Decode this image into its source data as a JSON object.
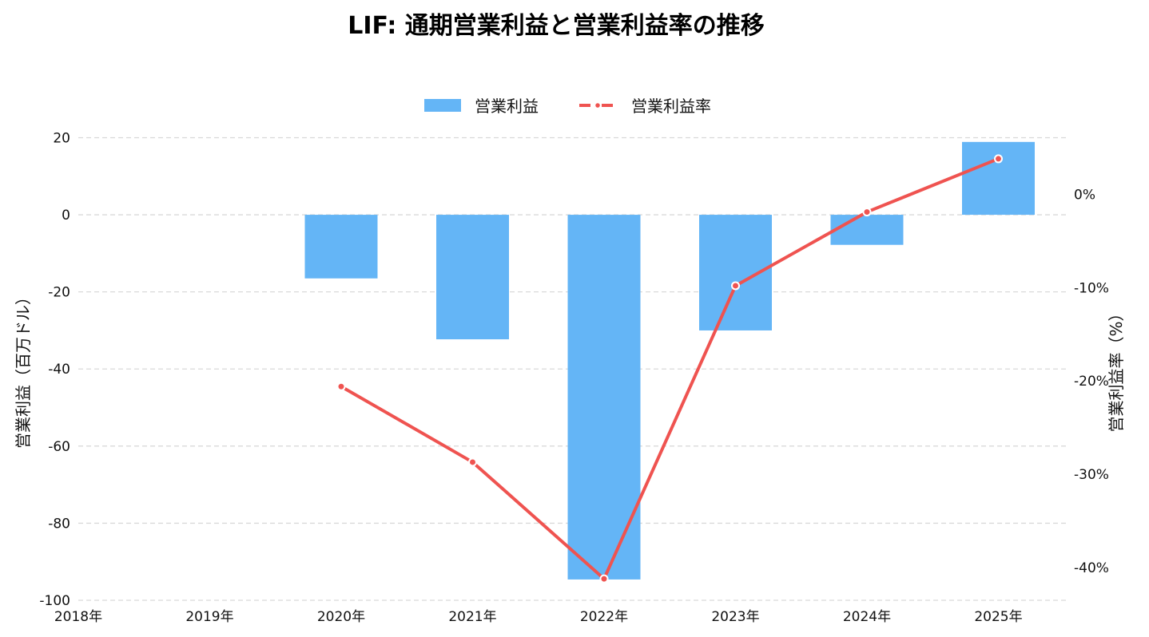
{
  "chart_data": {
    "type": "bar",
    "title": "LIF: 通期営業利益と営業利益率の推移",
    "categories": [
      "2018年",
      "2019年",
      "2020年",
      "2021年",
      "2022年",
      "2023年",
      "2024年",
      "2025年"
    ],
    "series": [
      {
        "name": "営業利益",
        "type": "bar",
        "axis": "left",
        "color": "#64B5F6",
        "values": [
          null,
          null,
          -16.5,
          -32.3,
          -94.6,
          -30.0,
          -7.8,
          18.9
        ]
      },
      {
        "name": "営業利益率",
        "type": "line",
        "axis": "right",
        "color": "#EF5350",
        "values": [
          null,
          null,
          -20.6,
          -28.7,
          -41.2,
          -9.8,
          -1.9,
          3.8
        ]
      }
    ],
    "ylabel": "営業利益（百万ドル）",
    "ylim": [
      -100,
      23
    ],
    "yticks": [
      20,
      0,
      -20,
      -40,
      -60,
      -80,
      -100
    ],
    "y2label": "営業利益率（%）",
    "y2lim": [
      -43.5,
      7.3
    ],
    "y2ticks": [
      0,
      -10,
      -20,
      -30,
      -40
    ],
    "y2tick_labels": [
      "0%",
      "-10%",
      "-20%",
      "-30%",
      "-40%"
    ],
    "grid": true,
    "legend": "top-center"
  }
}
